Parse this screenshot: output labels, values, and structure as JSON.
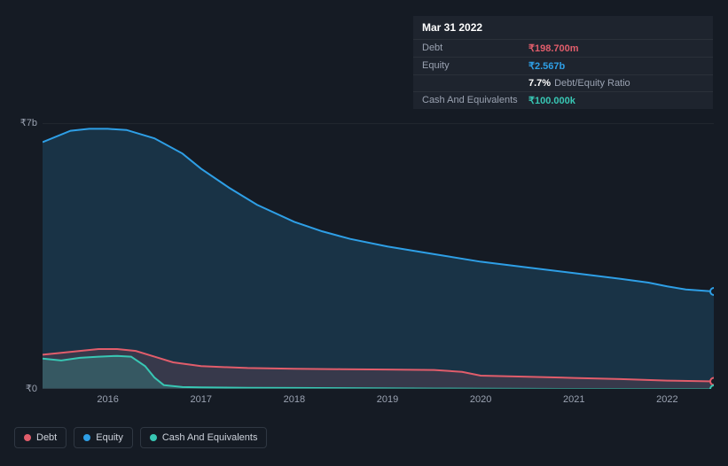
{
  "tooltip": {
    "date": "Mar 31 2022",
    "rows": [
      {
        "label": "Debt",
        "value": "₹198.700m",
        "color": "#e15d6b"
      },
      {
        "label": "Equity",
        "value": "₹2.567b",
        "color": "#2e9fe6"
      },
      {
        "label": "",
        "value": "7.7%",
        "extra": "Debt/Equity Ratio",
        "color": "#ffffff"
      },
      {
        "label": "Cash And Equivalents",
        "value": "₹100.000k",
        "color": "#38c7b4"
      }
    ]
  },
  "chart": {
    "type": "area",
    "background_color": "#151b24",
    "plot_background": "rgba(30,36,46,0.0)",
    "ylim": [
      0,
      7000000000
    ],
    "y_ticks": [
      {
        "label": "₹7b",
        "frac": 0
      },
      {
        "label": "₹0",
        "frac": 1
      }
    ],
    "x_years": [
      2016,
      2017,
      2018,
      2019,
      2020,
      2021,
      2022
    ],
    "x_start": 2015.3,
    "x_end": 2022.5,
    "series": {
      "equity": {
        "color": "#2e9fe6",
        "fill": "rgba(46,159,230,0.18)",
        "points": [
          [
            2015.3,
            6500000000
          ],
          [
            2015.6,
            6800000000
          ],
          [
            2015.8,
            6850000000
          ],
          [
            2016.0,
            6850000000
          ],
          [
            2016.2,
            6820000000
          ],
          [
            2016.5,
            6600000000
          ],
          [
            2016.8,
            6200000000
          ],
          [
            2017.0,
            5800000000
          ],
          [
            2017.3,
            5300000000
          ],
          [
            2017.6,
            4850000000
          ],
          [
            2018.0,
            4400000000
          ],
          [
            2018.3,
            4150000000
          ],
          [
            2018.6,
            3950000000
          ],
          [
            2019.0,
            3750000000
          ],
          [
            2019.5,
            3550000000
          ],
          [
            2020.0,
            3350000000
          ],
          [
            2020.5,
            3200000000
          ],
          [
            2021.0,
            3050000000
          ],
          [
            2021.5,
            2900000000
          ],
          [
            2021.8,
            2800000000
          ],
          [
            2022.0,
            2700000000
          ],
          [
            2022.2,
            2620000000
          ],
          [
            2022.5,
            2567000000
          ]
        ]
      },
      "debt": {
        "color": "#e15d6b",
        "fill": "rgba(225,93,107,0.15)",
        "points": [
          [
            2015.3,
            900000000
          ],
          [
            2015.5,
            950000000
          ],
          [
            2015.7,
            1000000000
          ],
          [
            2015.9,
            1050000000
          ],
          [
            2016.1,
            1050000000
          ],
          [
            2016.3,
            1000000000
          ],
          [
            2016.5,
            850000000
          ],
          [
            2016.7,
            700000000
          ],
          [
            2017.0,
            600000000
          ],
          [
            2017.5,
            550000000
          ],
          [
            2018.0,
            530000000
          ],
          [
            2018.5,
            520000000
          ],
          [
            2019.0,
            510000000
          ],
          [
            2019.5,
            500000000
          ],
          [
            2019.8,
            450000000
          ],
          [
            2020.0,
            350000000
          ],
          [
            2020.5,
            320000000
          ],
          [
            2021.0,
            290000000
          ],
          [
            2021.5,
            260000000
          ],
          [
            2022.0,
            220000000
          ],
          [
            2022.5,
            198700000
          ]
        ]
      },
      "cash": {
        "color": "#38c7b4",
        "fill": "rgba(56,199,180,0.22)",
        "points": [
          [
            2015.3,
            800000000
          ],
          [
            2015.5,
            750000000
          ],
          [
            2015.7,
            820000000
          ],
          [
            2015.9,
            850000000
          ],
          [
            2016.1,
            870000000
          ],
          [
            2016.25,
            850000000
          ],
          [
            2016.4,
            600000000
          ],
          [
            2016.5,
            300000000
          ],
          [
            2016.6,
            100000000
          ],
          [
            2016.8,
            50000000
          ],
          [
            2017.0,
            40000000
          ],
          [
            2017.5,
            30000000
          ],
          [
            2018.0,
            25000000
          ],
          [
            2018.5,
            20000000
          ],
          [
            2019.0,
            15000000
          ],
          [
            2019.5,
            10000000
          ],
          [
            2020.0,
            5000000
          ],
          [
            2020.5,
            2000000
          ],
          [
            2021.0,
            1000000
          ],
          [
            2021.5,
            500000
          ],
          [
            2022.0,
            200000
          ],
          [
            2022.5,
            100000
          ]
        ]
      }
    },
    "legend": [
      {
        "label": "Debt",
        "color": "#e15d6b"
      },
      {
        "label": "Equity",
        "color": "#2e9fe6"
      },
      {
        "label": "Cash And Equivalents",
        "color": "#38c7b4"
      }
    ],
    "cursor_x": 2022.25,
    "end_markers": [
      {
        "series": "equity",
        "color": "#2e9fe6"
      },
      {
        "series": "debt",
        "color": "#e15d6b"
      },
      {
        "series": "cash",
        "color": "#38c7b4"
      }
    ]
  }
}
